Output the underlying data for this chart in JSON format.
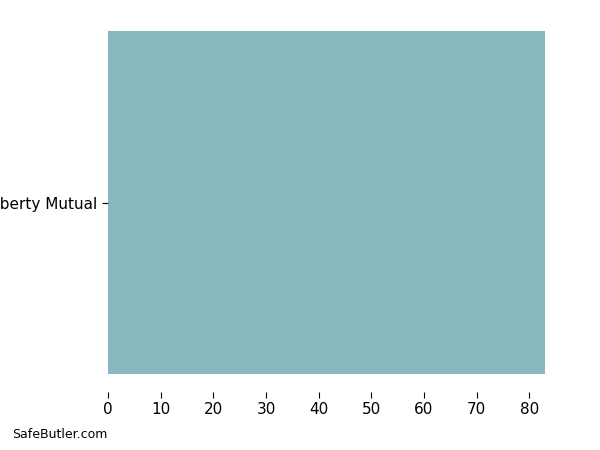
{
  "categories": [
    "Liberty Mutual"
  ],
  "values": [
    83
  ],
  "bar_color": "#87b8c0",
  "xlim": [
    0,
    90
  ],
  "xticks": [
    0,
    10,
    20,
    30,
    40,
    50,
    60,
    70,
    80
  ],
  "background_color": "#ffffff",
  "watermark": "SafeButler.com",
  "bar_height": 0.95,
  "tick_label_fontsize": 11,
  "ytick_fontsize": 11
}
